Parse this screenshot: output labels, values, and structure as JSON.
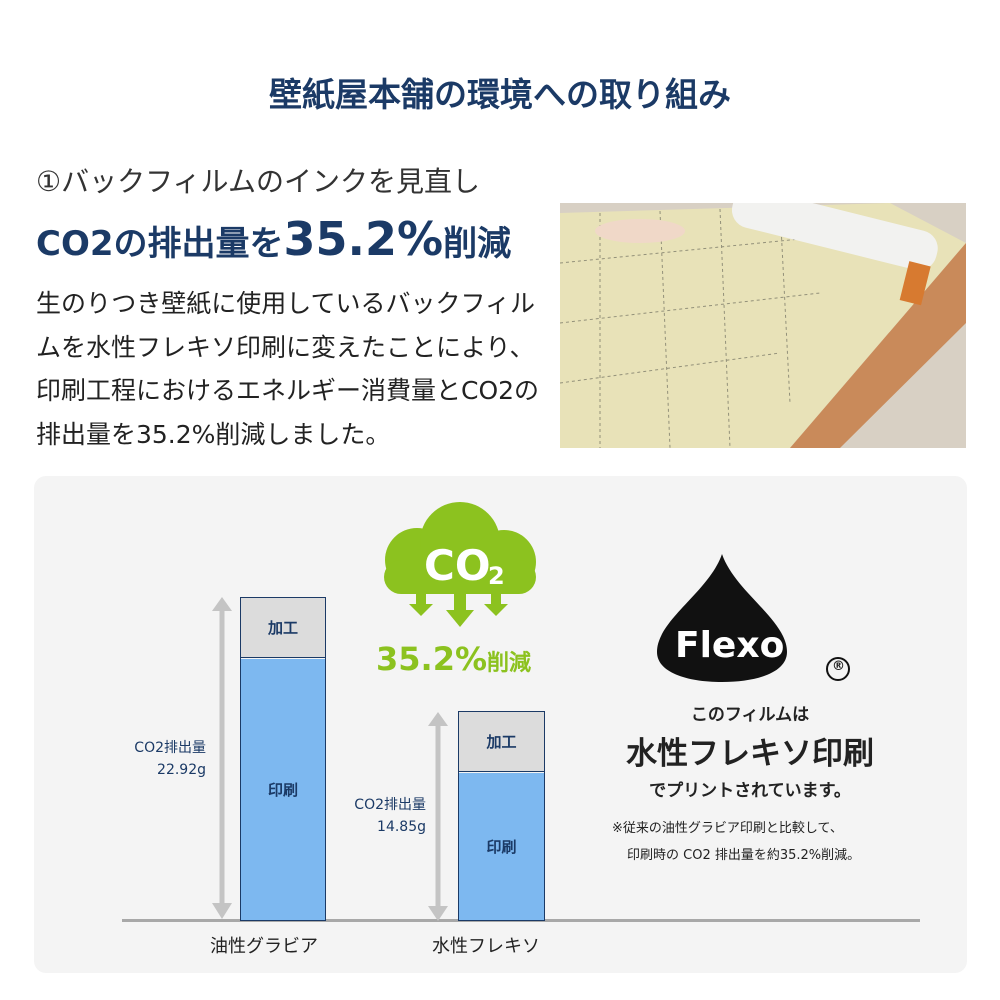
{
  "title": "壁紙屋本舗の環境への取り組み",
  "subtitle": "①バックフィルムのインクを見直し",
  "headline": {
    "pre": "CO2の排出量を",
    "value": "35.2%",
    "post": "削減"
  },
  "paragraph": "生のりつき壁紙に使用しているバックフィルムを水性フレキソ印刷に変えたことにより、印刷工程におけるエネルギー消費量とCO2の排出量を35.2%削減しました。",
  "colors": {
    "navy": "#1b3a66",
    "green": "#8cc21f",
    "bar_blue": "#7db8f0",
    "bar_grey": "#dcdcdc"
  },
  "chart_data": {
    "type": "bar",
    "categories": [
      "油性グラビア",
      "水性フレキソ"
    ],
    "segments": [
      "印刷",
      "加工"
    ],
    "totals": [
      {
        "label": "CO2排出量",
        "value": "22.92g",
        "num": 22.92
      },
      {
        "label": "CO2排出量",
        "value": "14.85g",
        "num": 14.85
      }
    ]
  },
  "cloud": {
    "text": "CO",
    "sub": "2",
    "reduction": "35.2%",
    "reduction_suffix": "削減"
  },
  "flexo": {
    "logo": "Flexo",
    "mark": "®",
    "line1": "このフィルムは",
    "line2": "水性フレキソ印刷",
    "line3": "でプリントされています。",
    "note1": "※従来の油性グラビア印刷と比較して、",
    "note2": "印刷時の CO2 排出量を約35.2%削減。"
  }
}
